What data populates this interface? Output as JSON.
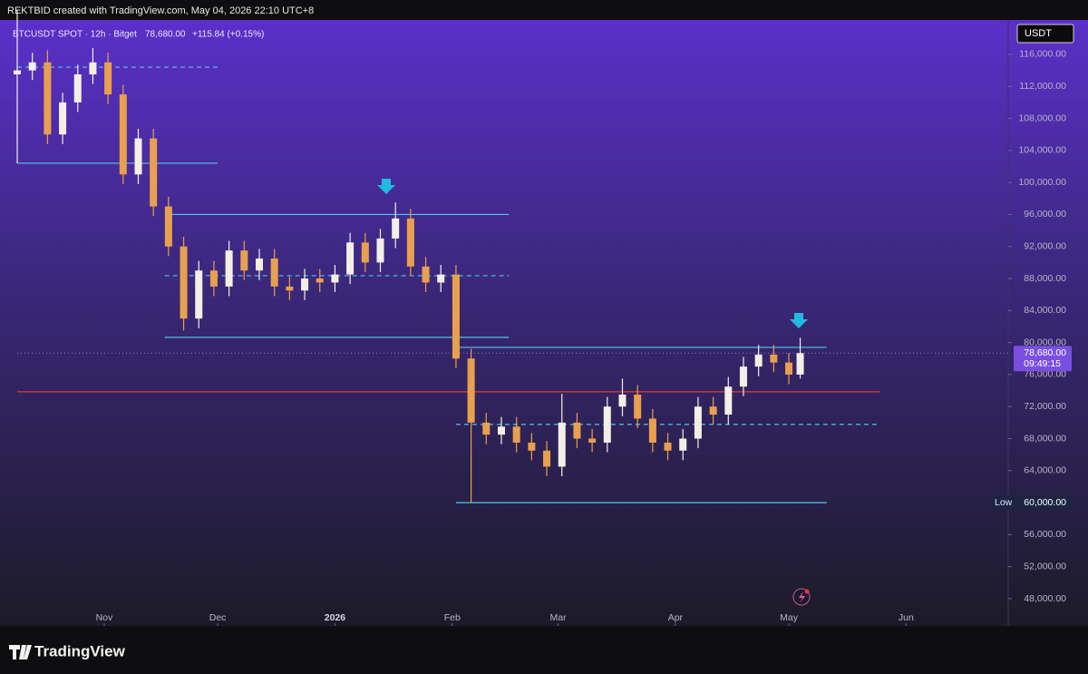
{
  "chart_data": {
    "type": "candlestick",
    "credit": "REKTBID created with TradingView.com, May 04, 2026 22:10 UTC+8",
    "title": "BTCUSDT SPOT · 12h · Bitget",
    "change": "+115.84 (+0.15%)",
    "currency": "USDT",
    "countdown": "09:49:15",
    "brand": "TradingView",
    "up_color": "#f4efe6",
    "down_color": "#e9a04e",
    "x": [
      0,
      4,
      8,
      12,
      16,
      20,
      24,
      28,
      32,
      36,
      40,
      44,
      48,
      52,
      56,
      60,
      64,
      68,
      72,
      76,
      80,
      84,
      88,
      92,
      96,
      100,
      104,
      108,
      112,
      116,
      120,
      124,
      128,
      132,
      136,
      140,
      144,
      148,
      152,
      156,
      160,
      164,
      168,
      172,
      176,
      180,
      184,
      188,
      192,
      196,
      200,
      204,
      207
    ],
    "open": [
      113500,
      114000,
      115000,
      106000,
      110000,
      113500,
      115000,
      111000,
      101000,
      105500,
      97000,
      92000,
      83000,
      89000,
      87000,
      91500,
      89000,
      90500,
      87000,
      86500,
      88000,
      87500,
      88500,
      92500,
      90000,
      93000,
      95500,
      89500,
      87500,
      88500,
      78000,
      70000,
      68500,
      69500,
      67500,
      66500,
      64500,
      70000,
      68000,
      67500,
      72000,
      73500,
      70500,
      67500,
      66500,
      68000,
      72000,
      71000,
      74500,
      77000,
      78500,
      77500,
      76000
    ],
    "high": [
      121500,
      116200,
      116500,
      111200,
      114700,
      116800,
      116200,
      112200,
      106700,
      106700,
      98200,
      93200,
      90200,
      90200,
      92700,
      92700,
      91700,
      91700,
      88200,
      89200,
      89200,
      89700,
      93700,
      93700,
      94200,
      97500,
      96700,
      90700,
      89700,
      89700,
      79200,
      71200,
      70700,
      70700,
      68700,
      67700,
      73600,
      71200,
      69200,
      73200,
      75500,
      74700,
      71700,
      68700,
      69200,
      73200,
      73200,
      75700,
      78200,
      79700,
      79700,
      78700,
      80600
    ],
    "low": [
      102400,
      112800,
      104800,
      104800,
      108800,
      112300,
      109800,
      99800,
      99800,
      95800,
      90800,
      81500,
      81800,
      85800,
      85800,
      87800,
      87800,
      85800,
      85300,
      85300,
      86300,
      86300,
      87300,
      88800,
      88800,
      91800,
      88300,
      86300,
      86300,
      76800,
      60000,
      67300,
      67300,
      66300,
      65300,
      63300,
      63300,
      66800,
      66300,
      66300,
      70800,
      69300,
      66300,
      65300,
      65300,
      66800,
      69800,
      69800,
      73300,
      75800,
      76300,
      74800,
      75500
    ],
    "close": [
      114000,
      115000,
      106000,
      110000,
      113500,
      115000,
      111000,
      101000,
      105500,
      97000,
      92000,
      83000,
      89000,
      87000,
      91500,
      89000,
      90500,
      87000,
      86500,
      88000,
      87500,
      88500,
      92500,
      90000,
      93000,
      95500,
      89500,
      87500,
      88500,
      78000,
      70000,
      68500,
      69500,
      67500,
      66500,
      64500,
      70000,
      68000,
      67500,
      72000,
      73500,
      70500,
      67500,
      66500,
      68000,
      72000,
      71000,
      74500,
      77000,
      78500,
      77500,
      76000,
      78680
    ],
    "last_price": {
      "value": 78680,
      "label": "78,680.00"
    },
    "low_marker": {
      "text": "Low",
      "value": 60000,
      "label": "60,000.00"
    },
    "levels": [
      {
        "value": 114400,
        "start": 0,
        "end": 53,
        "color": "#4fc6e8",
        "dashed": true
      },
      {
        "value": 102400,
        "start": 0,
        "end": 53,
        "color": "#4fc6e8",
        "dashed": false
      },
      {
        "value": 96000,
        "start": 39,
        "end": 130,
        "color": "#4fc6e8",
        "dashed": false
      },
      {
        "value": 88350,
        "start": 39,
        "end": 130,
        "color": "#4fc6e8",
        "dashed": true
      },
      {
        "value": 80650,
        "start": 39,
        "end": 130,
        "color": "#4fc6e8",
        "dashed": false
      },
      {
        "value": 79400,
        "start": 116,
        "end": 214,
        "color": "#4fc6e8",
        "dashed": false
      },
      {
        "value": 73850,
        "start": 0,
        "end": 228,
        "color": "#e53935",
        "dashed": false
      },
      {
        "value": 69770,
        "start": 116,
        "end": 228,
        "color": "#4fc6e8",
        "dashed": true
      },
      {
        "value": 60000,
        "start": 116,
        "end": 214,
        "color": "#4fc6e8",
        "dashed": false
      }
    ],
    "xlim": [
      0,
      262
    ],
    "xticks": [
      {
        "value": 23,
        "label": "Nov"
      },
      {
        "value": 53,
        "label": "Dec"
      },
      {
        "value": 84,
        "label": "2026"
      },
      {
        "value": 115,
        "label": "Feb"
      },
      {
        "value": 143,
        "label": "Mar"
      },
      {
        "value": 174,
        "label": "Apr"
      },
      {
        "value": 204,
        "label": "May"
      },
      {
        "value": 235,
        "label": "Jun"
      }
    ],
    "ylim": [
      44600,
      120300
    ],
    "yticks": [
      {
        "value": 48000,
        "label": "48,000.00"
      },
      {
        "value": 52000,
        "label": "52,000.00"
      },
      {
        "value": 56000,
        "label": "56,000.00"
      },
      {
        "value": 64000,
        "label": "64,000.00"
      },
      {
        "value": 68000,
        "label": "68,000.00"
      },
      {
        "value": 72000,
        "label": "72,000.00"
      },
      {
        "value": 76000,
        "label": "76,000.00"
      },
      {
        "value": 80000,
        "label": "80,000.00"
      },
      {
        "value": 84000,
        "label": "84,000.00"
      },
      {
        "value": 88000,
        "label": "88,000.00"
      },
      {
        "value": 92000,
        "label": "92,000.00"
      },
      {
        "value": 96000,
        "label": "96,000.00"
      },
      {
        "value": 100000,
        "label": "100,000.00"
      },
      {
        "value": 104000,
        "label": "104,000.00"
      },
      {
        "value": 108000,
        "label": "108,000.00"
      },
      {
        "value": 112000,
        "label": "112,000.00"
      },
      {
        "value": 116000,
        "label": "116,000.00"
      }
    ]
  }
}
